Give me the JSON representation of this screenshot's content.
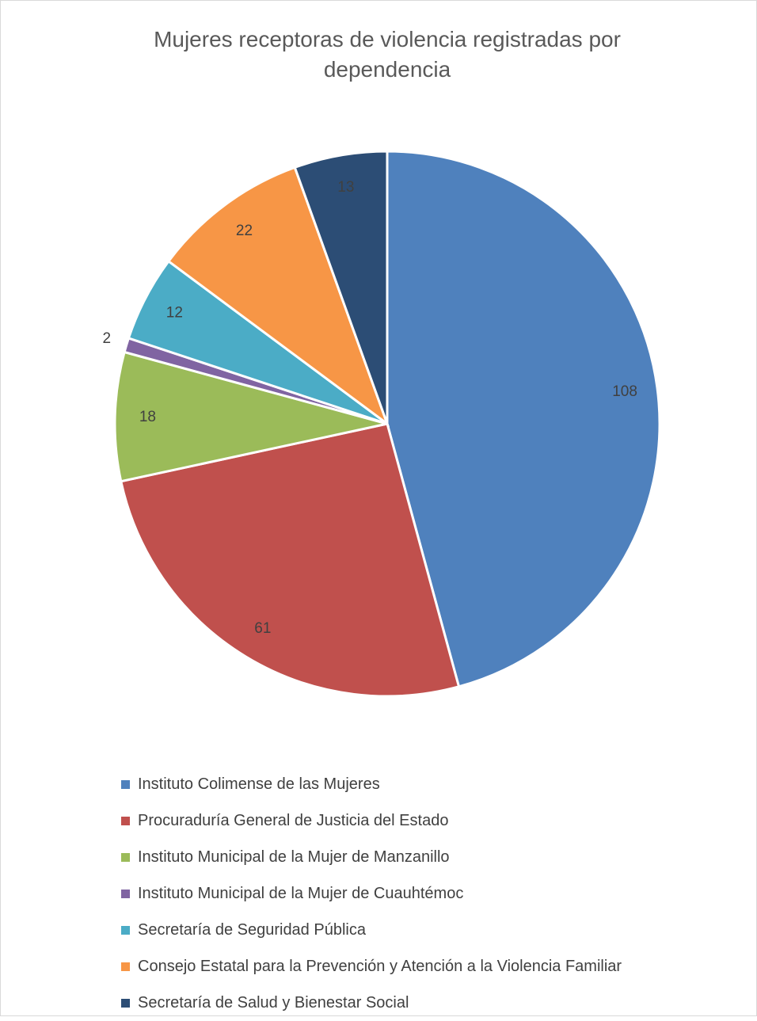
{
  "chart_data": {
    "type": "pie",
    "title": "Mujeres receptoras de violencia registradas por dependencia",
    "categories": [
      "Instituto Colimense de las Mujeres",
      "Procuraduría General de Justicia del Estado",
      "Instituto Municipal de la Mujer de Manzanillo",
      "Instituto Municipal de la Mujer de Cuauhtémoc",
      "Secretaría de Seguridad Pública",
      "Consejo Estatal para la Prevención y Atención a la Violencia Familiar",
      "Secretaría de Salud y Bienestar Social"
    ],
    "values": [
      108,
      61,
      18,
      2,
      12,
      22,
      13
    ],
    "colors": [
      "#4f81bd",
      "#c0504d",
      "#9bbb59",
      "#8064a2",
      "#4bacc6",
      "#f79646",
      "#2c4d75"
    ],
    "legend_position": "bottom",
    "data_labels": [
      "108",
      "61",
      "18",
      "2",
      "12",
      "22",
      "13"
    ]
  }
}
